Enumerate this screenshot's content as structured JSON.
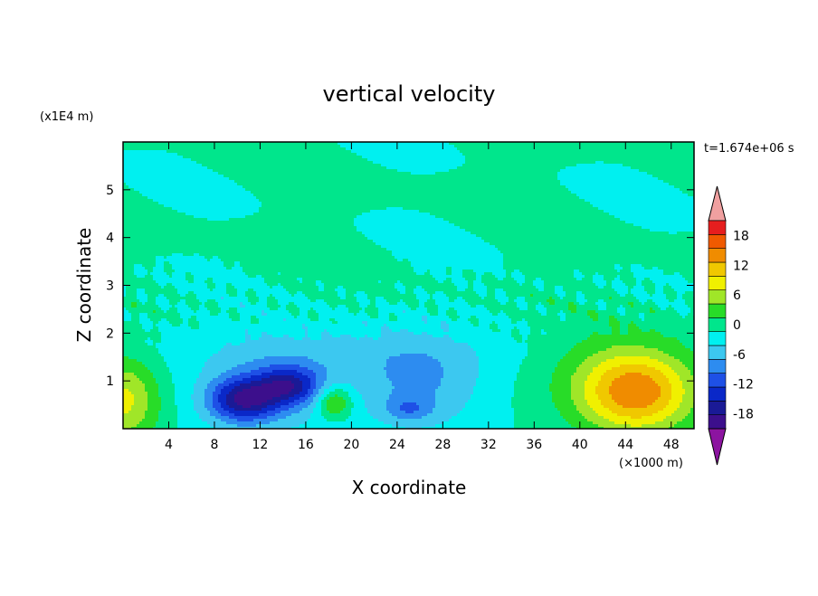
{
  "chart_data": {
    "type": "heatmap",
    "title": "vertical velocity",
    "xlabel": "X coordinate",
    "ylabel": "Z coordinate",
    "x_units": "(×1000 m)",
    "y_units": "(x1E4 m)",
    "time_label": "t=1.674e+06 s",
    "xlim": [
      0,
      50
    ],
    "ylim": [
      0,
      6
    ],
    "x_ticks": [
      4,
      8,
      12,
      16,
      20,
      24,
      28,
      32,
      36,
      40,
      44,
      48
    ],
    "y_ticks": [
      1,
      2,
      3,
      4,
      5
    ],
    "x_tick_labels": [
      "4",
      "8",
      "12",
      "16",
      "20",
      "24",
      "28",
      "32",
      "36",
      "40",
      "44",
      "48"
    ],
    "y_tick_labels": [
      "1",
      "2",
      "3",
      "4",
      "5"
    ],
    "colorbar": {
      "levels": [
        -21,
        -18,
        -15,
        -12,
        -9,
        -6,
        -3,
        0,
        3,
        6,
        9,
        12,
        15,
        18,
        21
      ],
      "labels": [
        "-18",
        "-12",
        "-6",
        "0",
        "6",
        "12",
        "18"
      ],
      "label_values": [
        -18,
        -12,
        -6,
        0,
        6,
        12,
        18
      ],
      "colors": [
        "#3c0f8c",
        "#1a1a96",
        "#0a28c8",
        "#1e50e6",
        "#2d8cf0",
        "#3cc8f0",
        "#00f0f0",
        "#00e68c",
        "#28dc28",
        "#a0e628",
        "#f0f000",
        "#f0c800",
        "#f08c00",
        "#f05a00",
        "#e61e1e"
      ],
      "under_color": "#8c14a0",
      "over_color": "#f0a0a0"
    },
    "features": [
      {
        "name": "updraft core",
        "x": 45,
        "z": 0.75,
        "value": 15
      },
      {
        "name": "left-edge updraft",
        "x": 0.5,
        "z": 0.6,
        "value": 9
      },
      {
        "name": "downdraft core",
        "x": 10,
        "z": 0.6,
        "value": -15
      },
      {
        "name": "downdraft",
        "x": 15,
        "z": 0.9,
        "value": -12
      },
      {
        "name": "downdraft",
        "x": 25,
        "z": 0.4,
        "value": -9
      },
      {
        "name": "updraft",
        "x": 18,
        "z": 0.55,
        "value": 2
      }
    ]
  }
}
